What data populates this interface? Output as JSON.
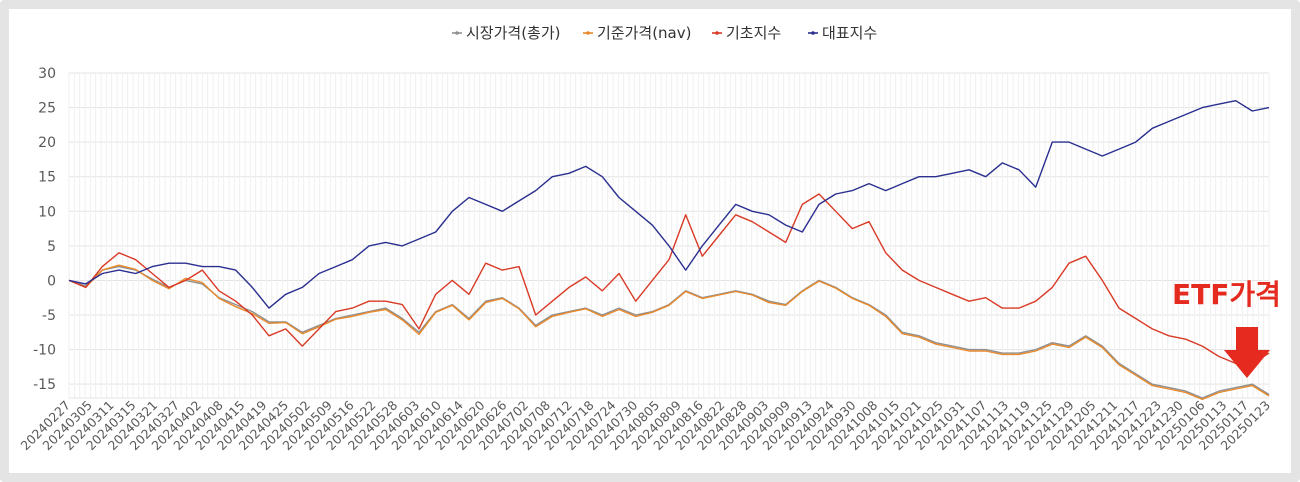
{
  "chart_data": {
    "type": "line",
    "title": "",
    "xlabel": "",
    "ylabel": "",
    "ylim": [
      -17,
      30
    ],
    "yticks": [
      -15,
      -10,
      -5,
      0,
      5,
      10,
      15,
      20,
      25,
      30
    ],
    "grid": true,
    "legend_position": "top-center",
    "annotation": "ETF가격",
    "annotation_color": "#e52b1f",
    "x_tick_labels": [
      "20240227",
      "20240305",
      "20240311",
      "20240315",
      "20240321",
      "20240327",
      "20240402",
      "20240408",
      "20240415",
      "20240419",
      "20240425",
      "20240502",
      "20240509",
      "20240516",
      "20240522",
      "20240528",
      "20240603",
      "20240610",
      "20240614",
      "20240620",
      "20240626",
      "20240702",
      "20240708",
      "20240712",
      "20240718",
      "20240724",
      "20240730",
      "20240805",
      "20240809",
      "20240816",
      "20240822",
      "20240828",
      "20240903",
      "20240909",
      "20240913",
      "20240924",
      "20240930",
      "20241008",
      "20241015",
      "20241021",
      "20241025",
      "20241031",
      "20241107",
      "20241113",
      "20241119",
      "20241125",
      "20241129",
      "20241205",
      "20241211",
      "20241217",
      "20241223",
      "20241230",
      "20250106",
      "20250113",
      "20250117",
      "20250123"
    ],
    "series": [
      {
        "name": "시장가격(총가)",
        "color": "#909090",
        "points": [
          [
            0,
            0
          ],
          [
            1,
            -0.8
          ],
          [
            2,
            1.5
          ],
          [
            3,
            2
          ],
          [
            4,
            1.5
          ],
          [
            5,
            0.2
          ],
          [
            6,
            -1
          ],
          [
            7,
            0
          ],
          [
            8,
            -0.5
          ],
          [
            9,
            -2.5
          ],
          [
            10,
            -3.5
          ],
          [
            11,
            -4.5
          ],
          [
            12,
            -6
          ],
          [
            13,
            -6
          ],
          [
            14,
            -7.5
          ],
          [
            15,
            -6.5
          ],
          [
            16,
            -5.5
          ],
          [
            17,
            -5
          ],
          [
            18,
            -4.5
          ],
          [
            19,
            -4
          ],
          [
            20,
            -5.5
          ],
          [
            21,
            -7.5
          ],
          [
            22,
            -4.5
          ],
          [
            23,
            -3.5
          ],
          [
            24,
            -5.5
          ],
          [
            25,
            -3
          ],
          [
            26,
            -2.5
          ],
          [
            27,
            -4
          ],
          [
            28,
            -6.5
          ],
          [
            29,
            -5
          ],
          [
            30,
            -4.5
          ],
          [
            31,
            -4
          ],
          [
            32,
            -5
          ],
          [
            33,
            -4
          ],
          [
            34,
            -5
          ],
          [
            35,
            -4.5
          ],
          [
            36,
            -3.5
          ],
          [
            37,
            -1.5
          ],
          [
            38,
            -2.5
          ],
          [
            39,
            -2
          ],
          [
            40,
            -1.5
          ],
          [
            41,
            -2
          ],
          [
            42,
            -3
          ],
          [
            43,
            -3.5
          ],
          [
            44,
            -1.5
          ],
          [
            45,
            0
          ],
          [
            46,
            -1
          ],
          [
            47,
            -2.5
          ],
          [
            48,
            -3.5
          ],
          [
            49,
            -5
          ],
          [
            50,
            -7.5
          ],
          [
            51,
            -8
          ],
          [
            52,
            -9
          ],
          [
            53,
            -9.5
          ],
          [
            54,
            -10
          ],
          [
            55,
            -10
          ],
          [
            56,
            -10.5
          ],
          [
            57,
            -10.5
          ],
          [
            58,
            -10
          ],
          [
            59,
            -9
          ],
          [
            60,
            -9.5
          ],
          [
            61,
            -8
          ],
          [
            62,
            -9.5
          ],
          [
            63,
            -12
          ],
          [
            64,
            -13.5
          ],
          [
            65,
            -15
          ],
          [
            66,
            -15.5
          ],
          [
            67,
            -16
          ],
          [
            68,
            -17
          ],
          [
            69,
            -16
          ],
          [
            70,
            -15.5
          ],
          [
            71,
            -15
          ],
          [
            72,
            -16.5
          ]
        ]
      },
      {
        "name": "기준가격(nav)",
        "color": "#e8892b",
        "points": [
          [
            0,
            0
          ],
          [
            1,
            -1
          ],
          [
            2,
            1.5
          ],
          [
            3,
            2.2
          ],
          [
            4,
            1.6
          ],
          [
            5,
            0
          ],
          [
            6,
            -1.2
          ],
          [
            7,
            0.3
          ],
          [
            8,
            -0.3
          ],
          [
            9,
            -2.6
          ],
          [
            10,
            -3.8
          ],
          [
            11,
            -4.8
          ],
          [
            12,
            -6.2
          ],
          [
            13,
            -6.1
          ],
          [
            14,
            -7.7
          ],
          [
            15,
            -6.7
          ],
          [
            16,
            -5.6
          ],
          [
            17,
            -5.2
          ],
          [
            18,
            -4.6
          ],
          [
            19,
            -4.2
          ],
          [
            20,
            -5.7
          ],
          [
            21,
            -7.8
          ],
          [
            22,
            -4.6
          ],
          [
            23,
            -3.6
          ],
          [
            24,
            -5.7
          ],
          [
            25,
            -3.2
          ],
          [
            26,
            -2.6
          ],
          [
            27,
            -4.1
          ],
          [
            28,
            -6.7
          ],
          [
            29,
            -5.2
          ],
          [
            30,
            -4.6
          ],
          [
            31,
            -4.1
          ],
          [
            32,
            -5.2
          ],
          [
            33,
            -4.2
          ],
          [
            34,
            -5.2
          ],
          [
            35,
            -4.6
          ],
          [
            36,
            -3.6
          ],
          [
            37,
            -1.6
          ],
          [
            38,
            -2.6
          ],
          [
            39,
            -2.1
          ],
          [
            40,
            -1.6
          ],
          [
            41,
            -2.1
          ],
          [
            42,
            -3.2
          ],
          [
            43,
            -3.6
          ],
          [
            44,
            -1.6
          ],
          [
            45,
            -0.1
          ],
          [
            46,
            -1.1
          ],
          [
            47,
            -2.6
          ],
          [
            48,
            -3.6
          ],
          [
            49,
            -5.2
          ],
          [
            50,
            -7.7
          ],
          [
            51,
            -8.2
          ],
          [
            52,
            -9.2
          ],
          [
            53,
            -9.7
          ],
          [
            54,
            -10.2
          ],
          [
            55,
            -10.2
          ],
          [
            56,
            -10.7
          ],
          [
            57,
            -10.7
          ],
          [
            58,
            -10.2
          ],
          [
            59,
            -9.2
          ],
          [
            60,
            -9.7
          ],
          [
            61,
            -8.2
          ],
          [
            62,
            -9.7
          ],
          [
            63,
            -12.2
          ],
          [
            64,
            -13.7
          ],
          [
            65,
            -15.2
          ],
          [
            66,
            -15.7
          ],
          [
            67,
            -16.2
          ],
          [
            68,
            -17.2
          ],
          [
            69,
            -16.2
          ],
          [
            70,
            -15.7
          ],
          [
            71,
            -15.2
          ],
          [
            72,
            -16.7
          ]
        ]
      },
      {
        "name": "기초지수",
        "color": "#d93a26",
        "points": [
          [
            0,
            0
          ],
          [
            1,
            -1
          ],
          [
            2,
            2
          ],
          [
            3,
            4
          ],
          [
            4,
            3
          ],
          [
            5,
            1
          ],
          [
            6,
            -1
          ],
          [
            7,
            0
          ],
          [
            8,
            1.5
          ],
          [
            9,
            -1.5
          ],
          [
            10,
            -3
          ],
          [
            11,
            -5
          ],
          [
            12,
            -8
          ],
          [
            13,
            -7
          ],
          [
            14,
            -9.5
          ],
          [
            15,
            -7
          ],
          [
            16,
            -4.5
          ],
          [
            17,
            -4
          ],
          [
            18,
            -3
          ],
          [
            19,
            -3
          ],
          [
            20,
            -3.5
          ],
          [
            21,
            -7
          ],
          [
            22,
            -2
          ],
          [
            23,
            0
          ],
          [
            24,
            -2
          ],
          [
            25,
            2.5
          ],
          [
            26,
            1.5
          ],
          [
            27,
            2
          ],
          [
            28,
            -5
          ],
          [
            29,
            -3
          ],
          [
            30,
            -1
          ],
          [
            31,
            0.5
          ],
          [
            32,
            -1.5
          ],
          [
            33,
            1
          ],
          [
            34,
            -3
          ],
          [
            35,
            0
          ],
          [
            36,
            3
          ],
          [
            37,
            9.5
          ],
          [
            38,
            3.5
          ],
          [
            39,
            6.5
          ],
          [
            40,
            9.5
          ],
          [
            41,
            8.5
          ],
          [
            42,
            7
          ],
          [
            43,
            5.5
          ],
          [
            44,
            11
          ],
          [
            45,
            12.5
          ],
          [
            46,
            10
          ],
          [
            47,
            7.5
          ],
          [
            48,
            8.5
          ],
          [
            49,
            4
          ],
          [
            50,
            1.5
          ],
          [
            51,
            0
          ],
          [
            52,
            -1
          ],
          [
            53,
            -2
          ],
          [
            54,
            -3
          ],
          [
            55,
            -2.5
          ],
          [
            56,
            -4
          ],
          [
            57,
            -4
          ],
          [
            58,
            -3
          ],
          [
            59,
            -1
          ],
          [
            60,
            2.5
          ],
          [
            61,
            3.5
          ],
          [
            62,
            0
          ],
          [
            63,
            -4
          ],
          [
            64,
            -5.5
          ],
          [
            65,
            -7
          ],
          [
            66,
            -8
          ],
          [
            67,
            -8.5
          ],
          [
            68,
            -9.5
          ],
          [
            69,
            -11
          ],
          [
            70,
            -12
          ],
          [
            71,
            -12
          ],
          [
            72,
            -10.5
          ]
        ]
      },
      {
        "name": "대표지수",
        "color": "#2a2f8f",
        "points": [
          [
            0,
            0
          ],
          [
            1,
            -0.5
          ],
          [
            2,
            1
          ],
          [
            3,
            1.5
          ],
          [
            4,
            1
          ],
          [
            5,
            2
          ],
          [
            6,
            2.5
          ],
          [
            7,
            2.5
          ],
          [
            8,
            2
          ],
          [
            9,
            2
          ],
          [
            10,
            1.5
          ],
          [
            11,
            -1
          ],
          [
            12,
            -4
          ],
          [
            13,
            -2
          ],
          [
            14,
            -1
          ],
          [
            15,
            1
          ],
          [
            16,
            2
          ],
          [
            17,
            3
          ],
          [
            18,
            5
          ],
          [
            19,
            5.5
          ],
          [
            20,
            5
          ],
          [
            21,
            6
          ],
          [
            22,
            7
          ],
          [
            23,
            10
          ],
          [
            24,
            12
          ],
          [
            25,
            11
          ],
          [
            26,
            10
          ],
          [
            27,
            11.5
          ],
          [
            28,
            13
          ],
          [
            29,
            15
          ],
          [
            30,
            15.5
          ],
          [
            31,
            16.5
          ],
          [
            32,
            15
          ],
          [
            33,
            12
          ],
          [
            34,
            10
          ],
          [
            35,
            8
          ],
          [
            36,
            5
          ],
          [
            37,
            1.5
          ],
          [
            38,
            5
          ],
          [
            39,
            8
          ],
          [
            40,
            11
          ],
          [
            41,
            10
          ],
          [
            42,
            9.5
          ],
          [
            43,
            8
          ],
          [
            44,
            7
          ],
          [
            45,
            11
          ],
          [
            46,
            12.5
          ],
          [
            47,
            13
          ],
          [
            48,
            14
          ],
          [
            49,
            13
          ],
          [
            50,
            14
          ],
          [
            51,
            15
          ],
          [
            52,
            15
          ],
          [
            53,
            15.5
          ],
          [
            54,
            16
          ],
          [
            55,
            15
          ],
          [
            56,
            17
          ],
          [
            57,
            16
          ],
          [
            58,
            13.5
          ],
          [
            59,
            20
          ],
          [
            60,
            20
          ],
          [
            61,
            19
          ],
          [
            62,
            18
          ],
          [
            63,
            19
          ],
          [
            64,
            20
          ],
          [
            65,
            22
          ],
          [
            66,
            23
          ],
          [
            67,
            24
          ],
          [
            68,
            25
          ],
          [
            69,
            25.5
          ],
          [
            70,
            26
          ],
          [
            71,
            24.5
          ],
          [
            72,
            25
          ]
        ]
      }
    ]
  }
}
